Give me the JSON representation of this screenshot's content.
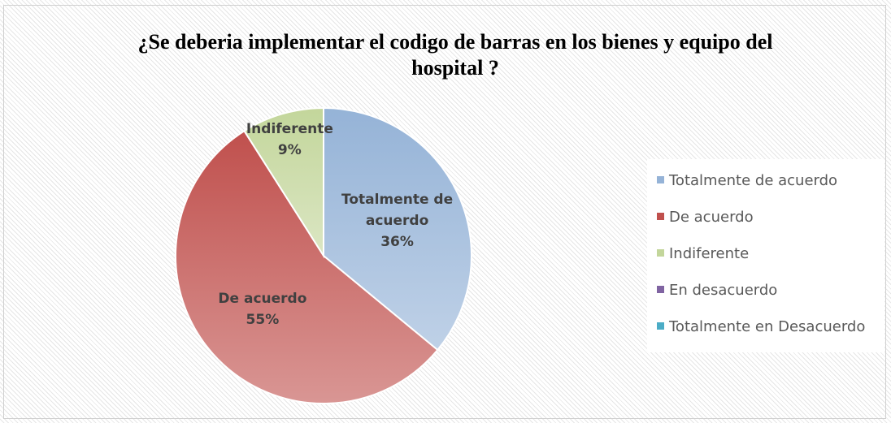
{
  "chart_data": {
    "type": "pie",
    "title": "¿Se deberia implementar el codigo de barras en los bienes y equipo del hospital ?",
    "categories": [
      "Totalmente de acuerdo",
      "De acuerdo",
      "Indiferente",
      "En desacuerdo",
      "Totalmente en Desacuerdo"
    ],
    "values": [
      36,
      55,
      9,
      0,
      0
    ],
    "value_labels": [
      "36%",
      "55%",
      "9%",
      null,
      null
    ],
    "colors": [
      "#95b3d7",
      "#c0504d",
      "#c3d69b",
      "#8064a2",
      "#4bacc6"
    ],
    "legend": "right"
  }
}
